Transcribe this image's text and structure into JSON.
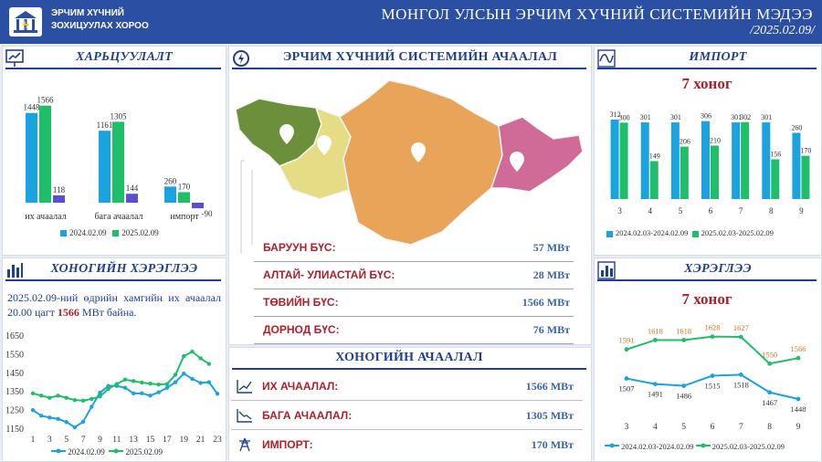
{
  "header": {
    "org_line1": "ЭРЧИМ ХҮЧНИЙ",
    "org_line2": "ЗОХИЦУУЛАХ ХОРОО",
    "title": "МОНГОЛ УЛСЫН ЭРЧИМ ХҮЧНИЙ СИСТЕМИЙН МЭДЭЭ",
    "date": "/2025.02.09/"
  },
  "colors": {
    "blue": "#1aa3de",
    "green": "#1fbf6a",
    "purple": "#5a4fcf",
    "title": "#1f3f91",
    "red": "#b0202a"
  },
  "comparison": {
    "title": "ХАРЬЦУУЛАЛТ",
    "legend": [
      "2024.02.09",
      "2025.02.09"
    ]
  },
  "map_panel": {
    "title": "ЭРЧИМ ХҮЧНИЙ СИСТЕМИЙН АЧААЛАЛ",
    "regions": [
      {
        "name": "БАРУУН БҮС:",
        "value": "57 МВт"
      },
      {
        "name": "АЛТАЙ- УЛИАСТАЙ БҮС:",
        "value": "28 МВт"
      },
      {
        "name": "ТӨВИЙН БҮС:",
        "value": "1566 МВт"
      },
      {
        "name": "ДОРНОД БҮС:",
        "value": "76 МВт"
      }
    ]
  },
  "import_panel": {
    "title": "ИМПОРТ",
    "subtitle": "7 хоног",
    "legend": [
      "2024.02.03-2024.02.09",
      "2025.02.03-2025.02.09"
    ]
  },
  "daily_panel": {
    "title": "ХОНОГИЙН ХЭРЭГЛЭЭ",
    "text_part1": "2025.02.09-ний өдрийн хамгийн их ачаалал 20.00 цагт",
    "text_highlight": "1566",
    "text_part2": "МВт байна.",
    "legend": [
      "2024.02.09",
      "2025.02.09"
    ]
  },
  "daily_load": {
    "title": "ХОНОГИЙН АЧААЛАЛ",
    "rows": [
      {
        "name": "ИХ АЧААЛАЛ:",
        "value": "1566 МВт"
      },
      {
        "name": "БАГА АЧААЛАЛ:",
        "value": "1305 МВт"
      },
      {
        "name": "ИМПОРТ:",
        "value": "170 МВт"
      }
    ]
  },
  "consumption_panel": {
    "title": "ХЭРЭГЛЭЭ",
    "subtitle": "7 хоног",
    "legend": [
      "2024.02.03-2024.02.09",
      "2025.02.03-2025.02.09"
    ]
  },
  "chart_data": [
    {
      "id": "comparison",
      "type": "bar",
      "title": "ХАРЬЦУУЛАЛТ",
      "categories": [
        "их ачаалал",
        "бага ачаалал",
        "импорт"
      ],
      "series": [
        {
          "name": "2024.02.09",
          "values": [
            1448,
            1161,
            260
          ]
        },
        {
          "name": "2025.02.09",
          "values": [
            1566,
            1305,
            170
          ]
        },
        {
          "values": [
            118,
            144,
            -90
          ]
        }
      ],
      "legend_position": "bottom"
    },
    {
      "id": "import",
      "type": "bar",
      "title": "ИМПОРТ",
      "categories": [
        "3",
        "4",
        "5",
        "6",
        "7",
        "8",
        "9"
      ],
      "series": [
        {
          "name": "2024.02.03-2024.02.09",
          "values": [
            312,
            301,
            301,
            306,
            301,
            301,
            260
          ]
        },
        {
          "name": "2025.02.03-2025.02.09",
          "values": [
            300,
            149,
            206,
            210,
            302,
            156,
            170
          ]
        }
      ],
      "legend_position": "bottom"
    },
    {
      "id": "daily",
      "type": "line",
      "title": "ХОНОГИЙН ХЭРЭГЛЭЭ",
      "x": [
        1,
        2,
        3,
        4,
        5,
        6,
        7,
        8,
        9,
        10,
        11,
        12,
        13,
        14,
        15,
        16,
        17,
        18,
        19,
        20,
        21,
        22,
        23
      ],
      "xticks": [
        "1",
        "3",
        "5",
        "7",
        "9",
        "11",
        "13",
        "15",
        "17",
        "19",
        "21",
        "23"
      ],
      "yticks": [
        "1150",
        "1250",
        "1350",
        "1450",
        "1550",
        "1650"
      ],
      "ylim": [
        1150,
        1650
      ],
      "series": [
        {
          "name": "2024.02.09",
          "values": [
            1252,
            1222,
            1212,
            1205,
            1188,
            1160,
            1190,
            1270,
            1345,
            1382,
            1382,
            1372,
            1342,
            1342,
            1330,
            1348,
            1372,
            1402,
            1448,
            1420,
            1398,
            1402,
            1340
          ]
        },
        {
          "name": "2025.02.09",
          "values": [
            1342,
            1330,
            1318,
            1330,
            1318,
            1306,
            1303,
            1312,
            1325,
            1366,
            1392,
            1416,
            1408,
            1400,
            1394,
            1390,
            1392,
            1442,
            1542,
            1566,
            1530,
            1500,
            null
          ]
        }
      ],
      "legend_position": "bottom"
    },
    {
      "id": "consumption",
      "type": "line",
      "title": "ХЭРЭГЛЭЭ",
      "categories": [
        "3",
        "4",
        "5",
        "6",
        "7",
        "8",
        "9"
      ],
      "series": [
        {
          "name": "2024.02.03-2024.02.09",
          "values": [
            1507,
            1491,
            1486,
            1515,
            1518,
            1467,
            1448
          ]
        },
        {
          "name": "2025.02.03-2025.02.09",
          "values": [
            1591,
            1618,
            1618,
            1628,
            1627,
            1550,
            1566
          ]
        }
      ],
      "legend_position": "bottom"
    }
  ]
}
